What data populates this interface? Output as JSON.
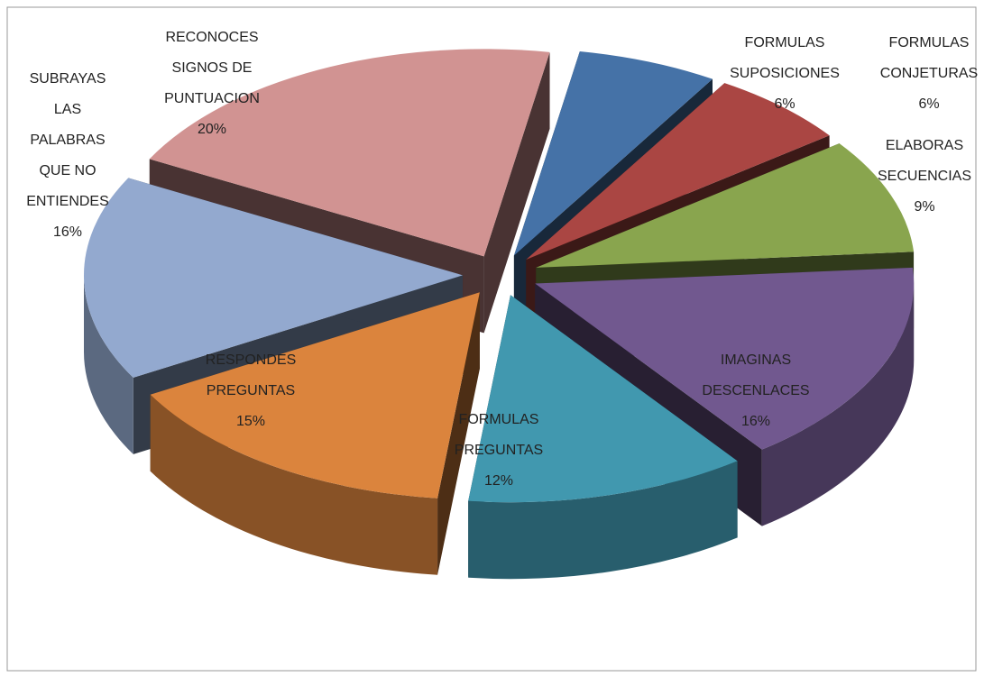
{
  "chart_data": {
    "type": "pie",
    "categories": [
      "FORMULAS\nSUPOSICIONES",
      "FORMULAS\nCONJETURAS",
      "ELABORAS\nSECUENCIAS",
      "IMAGINAS\nDESCENLACES",
      "FORMULAS\nPREGUNTAS",
      "RESPONDES\nPREGUNTAS",
      "SUBRAYAS\nLAS\nPALABRAS\nQUE NO\nENTIENDES",
      "RECONOCES\nSIGNOS DE\nPUNTUACION"
    ],
    "values": [
      6,
      6,
      9,
      16,
      12,
      15,
      16,
      20
    ],
    "value_labels": [
      "6%",
      "6%",
      "9%",
      "16%",
      "12%",
      "15%",
      "16%",
      "20%"
    ],
    "colors": [
      "#4572a7",
      "#aa4643",
      "#89a54e",
      "#71588f",
      "#4198af",
      "#db843d",
      "#93a9cf",
      "#d19392"
    ]
  }
}
